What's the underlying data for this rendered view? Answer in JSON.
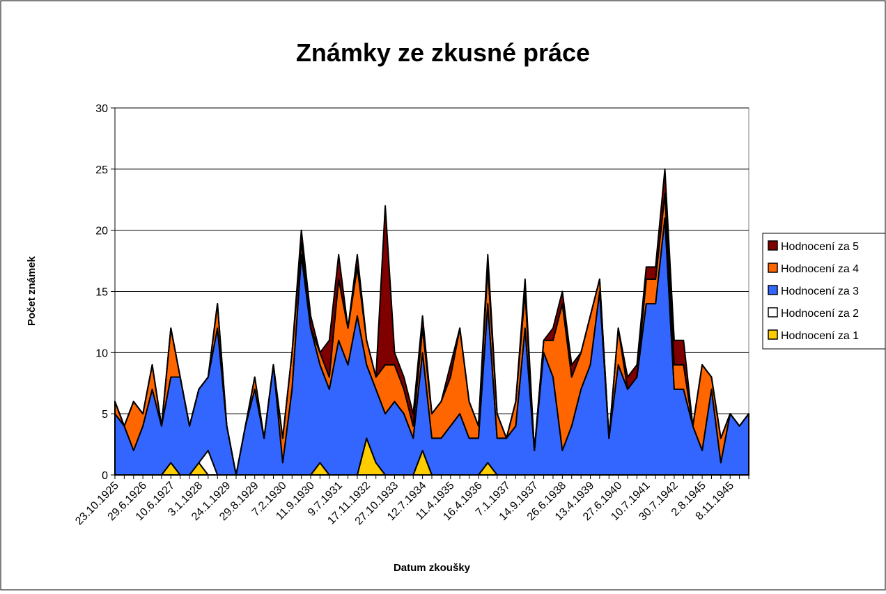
{
  "chart_data": {
    "type": "stacked_area",
    "title": "Známky ze zkusné práce",
    "x_label": "Datum zkoušky",
    "y_label": "Počet známek",
    "categories": [
      "23.10.1925",
      null,
      null,
      "29.6.1926",
      null,
      null,
      "10.6.1927",
      null,
      null,
      "3.1.1928",
      null,
      null,
      "24.1.1929",
      null,
      null,
      "29.8.1929",
      null,
      null,
      "7.2.1930",
      null,
      null,
      "11.9.1930",
      null,
      null,
      "9.7.1931",
      null,
      null,
      "17.11.1932",
      null,
      null,
      "27.10.1933",
      null,
      null,
      "12.7.1934",
      null,
      null,
      "11.4.1935",
      null,
      null,
      "16.4.1936",
      null,
      null,
      "7.1.1937",
      null,
      null,
      "14.9.1937",
      null,
      null,
      "26.6.1938",
      null,
      null,
      "13.4.1939",
      null,
      null,
      "27.6.1940",
      null,
      null,
      "10.7.1941",
      null,
      null,
      "30.7.1942",
      null,
      null,
      "2.8.1945",
      null,
      null,
      "8.11.1945",
      null,
      null
    ],
    "series": [
      {
        "name": "Hodnocení za 1",
        "color": "#ffcc00",
        "values": [
          0,
          0,
          0,
          0,
          0,
          0,
          1,
          0,
          0,
          1,
          0,
          0,
          0,
          0,
          0,
          0,
          0,
          0,
          0,
          0,
          0,
          0,
          1,
          0,
          0,
          0,
          0,
          3,
          1,
          0,
          0,
          0,
          0,
          2,
          0,
          0,
          0,
          0,
          0,
          0,
          1,
          0,
          0,
          0,
          0,
          0,
          0,
          0,
          0,
          0,
          0,
          0,
          0,
          0,
          0,
          0,
          0,
          0,
          0,
          0,
          0,
          0,
          0,
          0,
          0,
          0,
          0,
          0,
          0
        ]
      },
      {
        "name": "Hodnocení za 2",
        "color": "#ffffff",
        "values": [
          0,
          0,
          0,
          0,
          0,
          0,
          0,
          0,
          0,
          0,
          2,
          0,
          0,
          0,
          0,
          0,
          0,
          0,
          0,
          0,
          0,
          0,
          0,
          0,
          0,
          0,
          0,
          0,
          0,
          0,
          0,
          0,
          0,
          0,
          0,
          0,
          0,
          0,
          0,
          0,
          0,
          0,
          0,
          0,
          0,
          0,
          0,
          0,
          0,
          0,
          0,
          0,
          0,
          0,
          0,
          0,
          0,
          0,
          0,
          0,
          0,
          0,
          0,
          0,
          0,
          0,
          0,
          0,
          0
        ]
      },
      {
        "name": "Hodnocení za 3",
        "color": "#3366ff",
        "values": [
          5,
          4,
          2,
          4,
          7,
          4,
          7,
          8,
          4,
          6,
          6,
          12,
          4,
          0,
          4,
          7,
          3,
          9,
          1,
          7,
          18,
          12,
          8,
          7,
          11,
          9,
          13,
          6,
          6,
          5,
          6,
          5,
          3,
          8,
          3,
          3,
          4,
          5,
          3,
          3,
          13,
          3,
          3,
          4,
          12,
          2,
          10,
          8,
          2,
          4,
          7,
          9,
          15,
          3,
          9,
          7,
          8,
          14,
          14,
          21,
          7,
          7,
          4,
          2,
          7,
          1,
          5,
          4,
          5
        ]
      },
      {
        "name": "Hodnocení za 4",
        "color": "#ff6600",
        "values": [
          1,
          0,
          4,
          1,
          2,
          0,
          4,
          0,
          0,
          0,
          0,
          2,
          0,
          0,
          0,
          1,
          0,
          0,
          2,
          3,
          1,
          0,
          1,
          1,
          5,
          3,
          4,
          2,
          1,
          4,
          3,
          2,
          1,
          2,
          2,
          3,
          4,
          7,
          3,
          1,
          3,
          2,
          0,
          2,
          3,
          0,
          1,
          3,
          12,
          4,
          3,
          4,
          1,
          0,
          3,
          0,
          0,
          2,
          2,
          2,
          2,
          2,
          0,
          7,
          1,
          2,
          0,
          0,
          0
        ]
      },
      {
        "name": "Hodnocení za 5",
        "color": "#800000",
        "values": [
          0,
          0,
          0,
          0,
          0,
          0,
          0,
          0,
          0,
          0,
          0,
          0,
          0,
          0,
          0,
          0,
          0,
          0,
          0,
          0,
          1,
          1,
          0,
          3,
          2,
          0,
          1,
          0,
          0,
          13,
          1,
          1,
          1,
          1,
          0,
          0,
          1,
          0,
          0,
          0,
          1,
          0,
          0,
          0,
          1,
          0,
          0,
          1,
          1,
          1,
          0,
          0,
          0,
          0,
          0,
          1,
          1,
          1,
          1,
          2,
          2,
          2,
          0,
          0,
          0,
          0,
          0,
          0,
          0
        ]
      }
    ],
    "ylim": [
      0,
      30
    ],
    "yticks": [
      0,
      5,
      10,
      15,
      20,
      25,
      30
    ],
    "grid": true,
    "legend": "right"
  }
}
